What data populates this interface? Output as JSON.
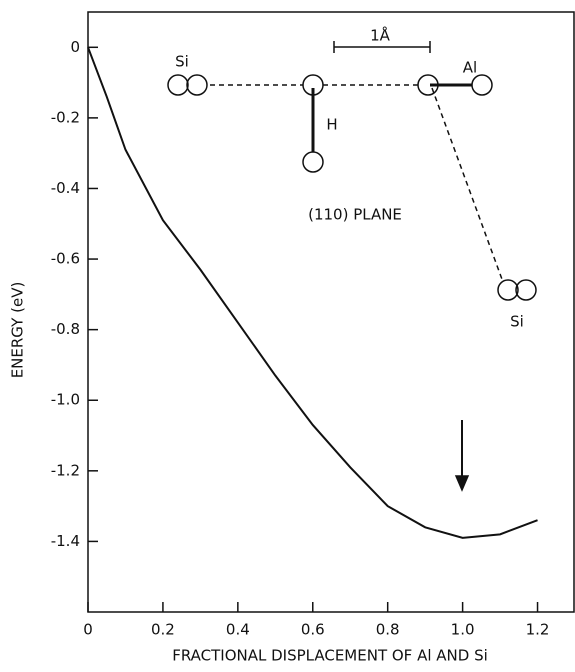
{
  "chart_data": {
    "type": "line",
    "x_label": "FRACTIONAL DISPLACEMENT OF Al AND Si",
    "y_label": "ENERGY (eV)",
    "x": [
      0,
      0.05,
      0.1,
      0.2,
      0.3,
      0.4,
      0.5,
      0.6,
      0.7,
      0.8,
      0.9,
      1.0,
      1.1,
      1.2
    ],
    "series": [
      {
        "color": "#111111",
        "values": [
          0,
          -0.14,
          -0.29,
          -0.49,
          -0.63,
          -0.78,
          -0.93,
          -1.07,
          -1.19,
          -1.3,
          -1.36,
          -1.39,
          -1.38,
          -1.34
        ]
      }
    ],
    "xlim": [
      0,
      1.3
    ],
    "ylim": [
      -1.6,
      0.1
    ],
    "xticks": [
      0,
      0.2,
      0.4,
      0.6,
      0.8,
      {
        "value": 1,
        "label": "1.0"
      },
      1.2
    ],
    "yticks": [
      0,
      -0.2,
      -0.4,
      -0.6,
      -0.8,
      {
        "value": -1,
        "label": "-1.0"
      },
      -1.2,
      -1.4
    ],
    "grid": false,
    "annotations": {
      "si_left": "Si",
      "hydrogen": "H",
      "aluminum": "Al",
      "si_right": "Si",
      "scale": "1Å",
      "plane": "(110) PLANE"
    }
  }
}
